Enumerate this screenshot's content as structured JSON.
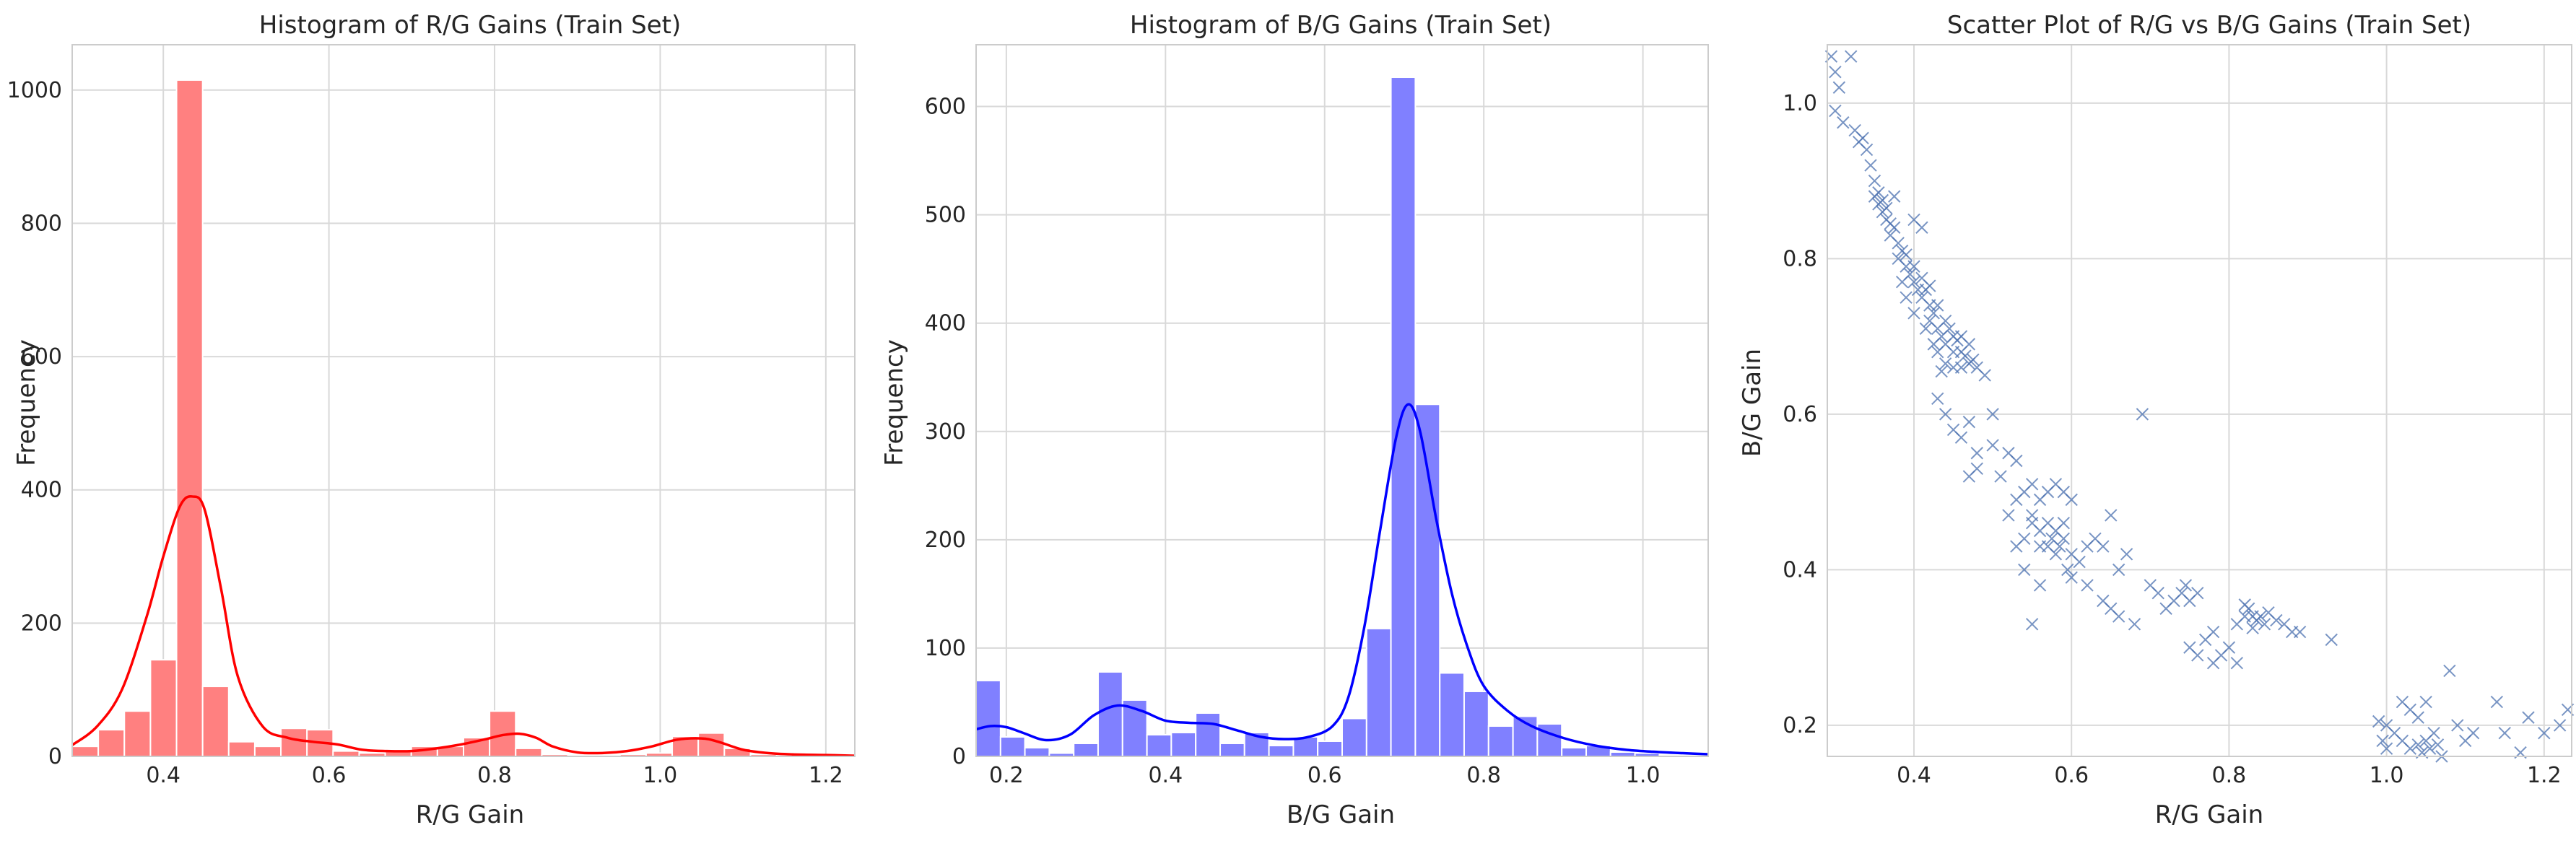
{
  "chart_data": [
    {
      "type": "histogram",
      "title": "Histogram of R/G Gains (Train Set)",
      "xlabel": "R/G Gain",
      "ylabel": "Frequency",
      "xlim": [
        0.29,
        1.235
      ],
      "ylim": [
        0,
        1068
      ],
      "xticks": [
        0.4,
        0.6,
        0.8,
        1.0,
        1.2
      ],
      "xtick_labels": [
        "0.4",
        "0.6",
        "0.8",
        "1.0",
        "1.2"
      ],
      "yticks": [
        0,
        200,
        400,
        600,
        800,
        1000
      ],
      "ytick_labels": [
        "0",
        "200",
        "400",
        "600",
        "800",
        "1000"
      ],
      "grid": true,
      "bar_color": "#ff8080",
      "kde_color": "#ff0000",
      "bin_edges": [
        0.29,
        0.3215,
        0.353,
        0.3845,
        0.416,
        0.4475,
        0.479,
        0.5105,
        0.542,
        0.5735,
        0.605,
        0.6365,
        0.668,
        0.6995,
        0.731,
        0.7625,
        0.794,
        0.8255,
        0.857,
        0.8885,
        0.92,
        0.9515,
        0.983,
        1.0145,
        1.046,
        1.0775,
        1.109,
        1.1405,
        1.172,
        1.2035,
        1.235
      ],
      "counts": [
        15,
        40,
        68,
        145,
        1015,
        105,
        22,
        15,
        42,
        40,
        8,
        5,
        8,
        15,
        15,
        28,
        68,
        12,
        3,
        0,
        2,
        3,
        5,
        30,
        35,
        12,
        3,
        1,
        1,
        2
      ],
      "kde": {
        "x": [
          0.29,
          0.32,
          0.35,
          0.38,
          0.4,
          0.42,
          0.435,
          0.45,
          0.47,
          0.49,
          0.52,
          0.55,
          0.58,
          0.61,
          0.64,
          0.67,
          0.7,
          0.73,
          0.76,
          0.79,
          0.81,
          0.83,
          0.85,
          0.87,
          0.9,
          0.93,
          0.96,
          0.99,
          1.02,
          1.05,
          1.07,
          1.1,
          1.13,
          1.16,
          1.2,
          1.235
        ],
        "y": [
          17,
          45,
          100,
          210,
          300,
          375,
          390,
          370,
          250,
          120,
          45,
          28,
          22,
          18,
          10,
          8,
          8,
          12,
          18,
          26,
          32,
          34,
          28,
          15,
          6,
          5,
          8,
          15,
          25,
          27,
          22,
          10,
          5,
          3,
          2,
          1
        ]
      }
    },
    {
      "type": "histogram",
      "title": "Histogram of B/G Gains (Train Set)",
      "xlabel": "B/G Gain",
      "ylabel": "Frequency",
      "xlim": [
        0.162,
        1.082
      ],
      "ylim": [
        0,
        657
      ],
      "xticks": [
        0.2,
        0.4,
        0.6,
        0.8,
        1.0
      ],
      "xtick_labels": [
        "0.2",
        "0.4",
        "0.6",
        "0.8",
        "1.0"
      ],
      "yticks": [
        0,
        100,
        200,
        300,
        400,
        500,
        600
      ],
      "ytick_labels": [
        "0",
        "100",
        "200",
        "300",
        "400",
        "500",
        "600"
      ],
      "grid": true,
      "bar_color": "#8080ff",
      "kde_color": "#0000ff",
      "bin_edges": [
        0.162,
        0.1927,
        0.2233,
        0.254,
        0.2847,
        0.3153,
        0.346,
        0.3767,
        0.4073,
        0.438,
        0.4687,
        0.4993,
        0.53,
        0.5607,
        0.5913,
        0.622,
        0.6527,
        0.6833,
        0.714,
        0.7447,
        0.7753,
        0.806,
        0.8367,
        0.8673,
        0.898,
        0.9287,
        0.9593,
        0.99,
        1.0207,
        1.0513,
        1.082
      ],
      "counts": [
        70,
        18,
        8,
        3,
        12,
        78,
        52,
        20,
        22,
        40,
        12,
        22,
        10,
        18,
        14,
        35,
        118,
        627,
        325,
        77,
        60,
        28,
        37,
        30,
        8,
        10,
        4,
        3,
        1,
        1
      ],
      "kde": {
        "x": [
          0.162,
          0.18,
          0.2,
          0.22,
          0.25,
          0.28,
          0.31,
          0.34,
          0.37,
          0.4,
          0.43,
          0.46,
          0.49,
          0.52,
          0.55,
          0.58,
          0.61,
          0.63,
          0.65,
          0.67,
          0.69,
          0.705,
          0.72,
          0.74,
          0.76,
          0.78,
          0.8,
          0.83,
          0.86,
          0.9,
          0.94,
          0.98,
          1.02,
          1.05,
          1.082
        ],
        "y": [
          25,
          28,
          27,
          22,
          15,
          20,
          38,
          47,
          42,
          33,
          31,
          30,
          24,
          18,
          16,
          18,
          28,
          55,
          120,
          210,
          295,
          325,
          300,
          220,
          150,
          100,
          65,
          42,
          28,
          17,
          10,
          6,
          4,
          3,
          2
        ]
      }
    },
    {
      "type": "scatter",
      "title": "Scatter Plot of R/G vs B/G Gains (Train Set)",
      "xlabel": "R/G Gain",
      "ylabel": "B/G Gain",
      "xlim": [
        0.29,
        1.235
      ],
      "ylim": [
        0.16,
        1.075
      ],
      "xticks": [
        0.4,
        0.6,
        0.8,
        1.0,
        1.2
      ],
      "xtick_labels": [
        "0.4",
        "0.6",
        "0.8",
        "1.0",
        "1.2"
      ],
      "yticks": [
        0.2,
        0.4,
        0.6,
        0.8,
        1.0
      ],
      "ytick_labels": [
        "0.2",
        "0.4",
        "0.6",
        "0.8",
        "1.0"
      ],
      "grid": true,
      "marker": "x",
      "marker_color": "#4c72b0",
      "points": [
        [
          0.295,
          1.06
        ],
        [
          0.3,
          1.04
        ],
        [
          0.305,
          1.02
        ],
        [
          0.32,
          1.06
        ],
        [
          0.3,
          0.99
        ],
        [
          0.31,
          0.975
        ],
        [
          0.325,
          0.965
        ],
        [
          0.33,
          0.95
        ],
        [
          0.34,
          0.94
        ],
        [
          0.345,
          0.92
        ],
        [
          0.335,
          0.955
        ],
        [
          0.35,
          0.9
        ],
        [
          0.35,
          0.88
        ],
        [
          0.355,
          0.87
        ],
        [
          0.36,
          0.875
        ],
        [
          0.36,
          0.86
        ],
        [
          0.365,
          0.85
        ],
        [
          0.37,
          0.845
        ],
        [
          0.355,
          0.885
        ],
        [
          0.365,
          0.865
        ],
        [
          0.37,
          0.83
        ],
        [
          0.375,
          0.84
        ],
        [
          0.38,
          0.82
        ],
        [
          0.38,
          0.8
        ],
        [
          0.385,
          0.81
        ],
        [
          0.39,
          0.79
        ],
        [
          0.395,
          0.78
        ],
        [
          0.39,
          0.805
        ],
        [
          0.4,
          0.77
        ],
        [
          0.4,
          0.79
        ],
        [
          0.405,
          0.76
        ],
        [
          0.41,
          0.775
        ],
        [
          0.41,
          0.75
        ],
        [
          0.415,
          0.76
        ],
        [
          0.42,
          0.74
        ],
        [
          0.42,
          0.765
        ],
        [
          0.42,
          0.72
        ],
        [
          0.425,
          0.73
        ],
        [
          0.43,
          0.71
        ],
        [
          0.43,
          0.74
        ],
        [
          0.435,
          0.7
        ],
        [
          0.44,
          0.72
        ],
        [
          0.44,
          0.69
        ],
        [
          0.445,
          0.71
        ],
        [
          0.45,
          0.7
        ],
        [
          0.45,
          0.68
        ],
        [
          0.455,
          0.695
        ],
        [
          0.46,
          0.68
        ],
        [
          0.46,
          0.66
        ],
        [
          0.465,
          0.675
        ],
        [
          0.47,
          0.665
        ],
        [
          0.475,
          0.67
        ],
        [
          0.48,
          0.66
        ],
        [
          0.49,
          0.65
        ],
        [
          0.43,
          0.68
        ],
        [
          0.44,
          0.665
        ],
        [
          0.425,
          0.69
        ],
        [
          0.435,
          0.655
        ],
        [
          0.415,
          0.71
        ],
        [
          0.45,
          0.66
        ],
        [
          0.46,
          0.7
        ],
        [
          0.47,
          0.69
        ],
        [
          0.4,
          0.85
        ],
        [
          0.41,
          0.84
        ],
        [
          0.375,
          0.88
        ],
        [
          0.385,
          0.77
        ],
        [
          0.39,
          0.75
        ],
        [
          0.4,
          0.73
        ],
        [
          0.43,
          0.62
        ],
        [
          0.44,
          0.6
        ],
        [
          0.45,
          0.58
        ],
        [
          0.46,
          0.57
        ],
        [
          0.47,
          0.59
        ],
        [
          0.48,
          0.55
        ],
        [
          0.5,
          0.56
        ],
        [
          0.52,
          0.55
        ],
        [
          0.5,
          0.6
        ],
        [
          0.53,
          0.54
        ],
        [
          0.47,
          0.52
        ],
        [
          0.48,
          0.53
        ],
        [
          0.51,
          0.52
        ],
        [
          0.53,
          0.49
        ],
        [
          0.54,
          0.5
        ],
        [
          0.55,
          0.51
        ],
        [
          0.56,
          0.49
        ],
        [
          0.57,
          0.5
        ],
        [
          0.58,
          0.51
        ],
        [
          0.59,
          0.5
        ],
        [
          0.6,
          0.49
        ],
        [
          0.52,
          0.47
        ],
        [
          0.53,
          0.43
        ],
        [
          0.54,
          0.44
        ],
        [
          0.55,
          0.46
        ],
        [
          0.56,
          0.45
        ],
        [
          0.57,
          0.46
        ],
        [
          0.575,
          0.44
        ],
        [
          0.58,
          0.45
        ],
        [
          0.585,
          0.43
        ],
        [
          0.59,
          0.44
        ],
        [
          0.6,
          0.42
        ],
        [
          0.56,
          0.43
        ],
        [
          0.57,
          0.43
        ],
        [
          0.58,
          0.42
        ],
        [
          0.59,
          0.46
        ],
        [
          0.55,
          0.47
        ],
        [
          0.595,
          0.4
        ],
        [
          0.6,
          0.39
        ],
        [
          0.56,
          0.38
        ],
        [
          0.54,
          0.4
        ],
        [
          0.55,
          0.33
        ],
        [
          0.61,
          0.41
        ],
        [
          0.62,
          0.43
        ],
        [
          0.63,
          0.44
        ],
        [
          0.64,
          0.43
        ],
        [
          0.65,
          0.47
        ],
        [
          0.66,
          0.4
        ],
        [
          0.67,
          0.42
        ],
        [
          0.64,
          0.36
        ],
        [
          0.65,
          0.35
        ],
        [
          0.66,
          0.34
        ],
        [
          0.62,
          0.38
        ],
        [
          0.69,
          0.6
        ],
        [
          0.68,
          0.33
        ],
        [
          0.7,
          0.38
        ],
        [
          0.71,
          0.37
        ],
        [
          0.72,
          0.35
        ],
        [
          0.73,
          0.36
        ],
        [
          0.74,
          0.37
        ],
        [
          0.745,
          0.38
        ],
        [
          0.75,
          0.36
        ],
        [
          0.76,
          0.37
        ],
        [
          0.75,
          0.3
        ],
        [
          0.76,
          0.29
        ],
        [
          0.77,
          0.31
        ],
        [
          0.78,
          0.28
        ],
        [
          0.79,
          0.29
        ],
        [
          0.8,
          0.3
        ],
        [
          0.81,
          0.28
        ],
        [
          0.78,
          0.32
        ],
        [
          0.81,
          0.33
        ],
        [
          0.82,
          0.34
        ],
        [
          0.825,
          0.35
        ],
        [
          0.83,
          0.34
        ],
        [
          0.835,
          0.335
        ],
        [
          0.84,
          0.34
        ],
        [
          0.845,
          0.33
        ],
        [
          0.85,
          0.345
        ],
        [
          0.86,
          0.335
        ],
        [
          0.87,
          0.33
        ],
        [
          0.88,
          0.32
        ],
        [
          0.89,
          0.32
        ],
        [
          0.82,
          0.355
        ],
        [
          0.83,
          0.325
        ],
        [
          0.93,
          0.31
        ],
        [
          0.99,
          0.205
        ],
        [
          1.0,
          0.2
        ],
        [
          1.01,
          0.19
        ],
        [
          1.02,
          0.18
        ],
        [
          1.03,
          0.17
        ],
        [
          1.04,
          0.175
        ],
        [
          1.045,
          0.165
        ],
        [
          1.05,
          0.18
        ],
        [
          1.055,
          0.17
        ],
        [
          1.06,
          0.19
        ],
        [
          1.065,
          0.175
        ],
        [
          1.07,
          0.16
        ],
        [
          1.02,
          0.23
        ],
        [
          1.03,
          0.22
        ],
        [
          1.04,
          0.21
        ],
        [
          1.05,
          0.23
        ],
        [
          1.08,
          0.27
        ],
        [
          1.09,
          0.2
        ],
        [
          1.1,
          0.18
        ],
        [
          1.11,
          0.19
        ],
        [
          1.14,
          0.23
        ],
        [
          1.15,
          0.19
        ],
        [
          1.18,
          0.21
        ],
        [
          1.2,
          0.19
        ],
        [
          1.22,
          0.2
        ],
        [
          1.23,
          0.22
        ],
        [
          1.17,
          0.165
        ],
        [
          1.0,
          0.17
        ],
        [
          0.995,
          0.18
        ]
      ]
    }
  ]
}
